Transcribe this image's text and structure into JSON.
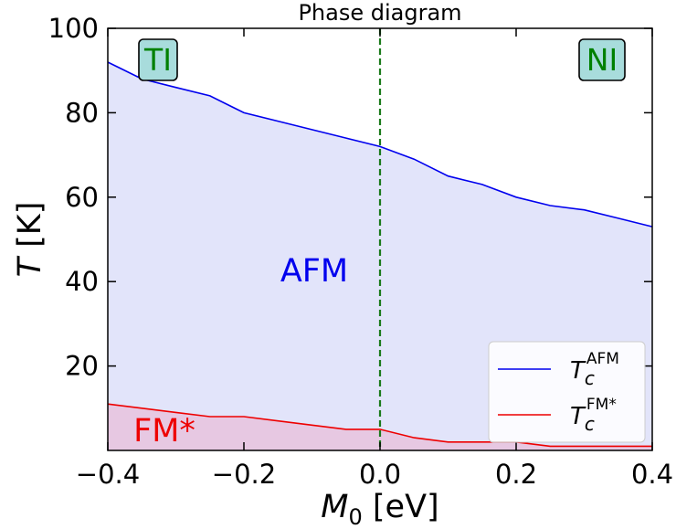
{
  "chart_data": {
    "type": "area",
    "title": "Phase diagram",
    "xlabel": {
      "var": "M",
      "sub": "0",
      "unit": " [eV]"
    },
    "ylabel": {
      "var": "T",
      "unit": " [K]"
    },
    "xlim": [
      -0.4,
      0.4
    ],
    "ylim": [
      0,
      100
    ],
    "xticks": [
      -0.4,
      -0.2,
      0.0,
      0.2,
      0.4
    ],
    "xtick_labels": [
      "−0.4",
      "−0.2",
      "0.0",
      "0.2",
      "0.4"
    ],
    "yticks": [
      20,
      40,
      60,
      80,
      100
    ],
    "ytick_labels": [
      "20",
      "40",
      "60",
      "80",
      "100"
    ],
    "vertical_line": {
      "x": 0.0,
      "style": "dashed",
      "color": "#1a7a1a"
    },
    "series": [
      {
        "name": {
          "base": "T",
          "sub": "c",
          "sup": "AFM"
        },
        "color": "#0000ee",
        "fill": "#e2e4fa",
        "x": [
          -0.4,
          -0.35,
          -0.3,
          -0.25,
          -0.2,
          -0.15,
          -0.1,
          -0.05,
          0.0,
          0.05,
          0.1,
          0.15,
          0.2,
          0.25,
          0.3,
          0.35,
          0.4
        ],
        "y": [
          92,
          88,
          86,
          84,
          80,
          78,
          76,
          74,
          72,
          69,
          65,
          63,
          60,
          58,
          57,
          55,
          53
        ]
      },
      {
        "name": {
          "base": "T",
          "sub": "c",
          "sup": "FM*"
        },
        "color": "#ee0000",
        "fill": "#e7c8e2",
        "x": [
          -0.4,
          -0.35,
          -0.3,
          -0.25,
          -0.2,
          -0.15,
          -0.1,
          -0.05,
          0.0,
          0.05,
          0.1,
          0.15,
          0.2,
          0.25,
          0.3,
          0.35,
          0.4
        ],
        "y": [
          11,
          10,
          9,
          8,
          8,
          7,
          6,
          5,
          5,
          3,
          2,
          2,
          2,
          1,
          1,
          1,
          1
        ]
      }
    ],
    "annotations": [
      {
        "text": "AFM",
        "color": "#0000ee"
      },
      {
        "text": "FM*",
        "color": "#ee0000"
      }
    ],
    "corner_labels": [
      {
        "text": "TI",
        "box_fill": "#a8dcdc"
      },
      {
        "text": "NI",
        "box_fill": "#a8dcdc"
      }
    ],
    "legend": {
      "position": "bottom-right"
    },
    "grid": false
  }
}
